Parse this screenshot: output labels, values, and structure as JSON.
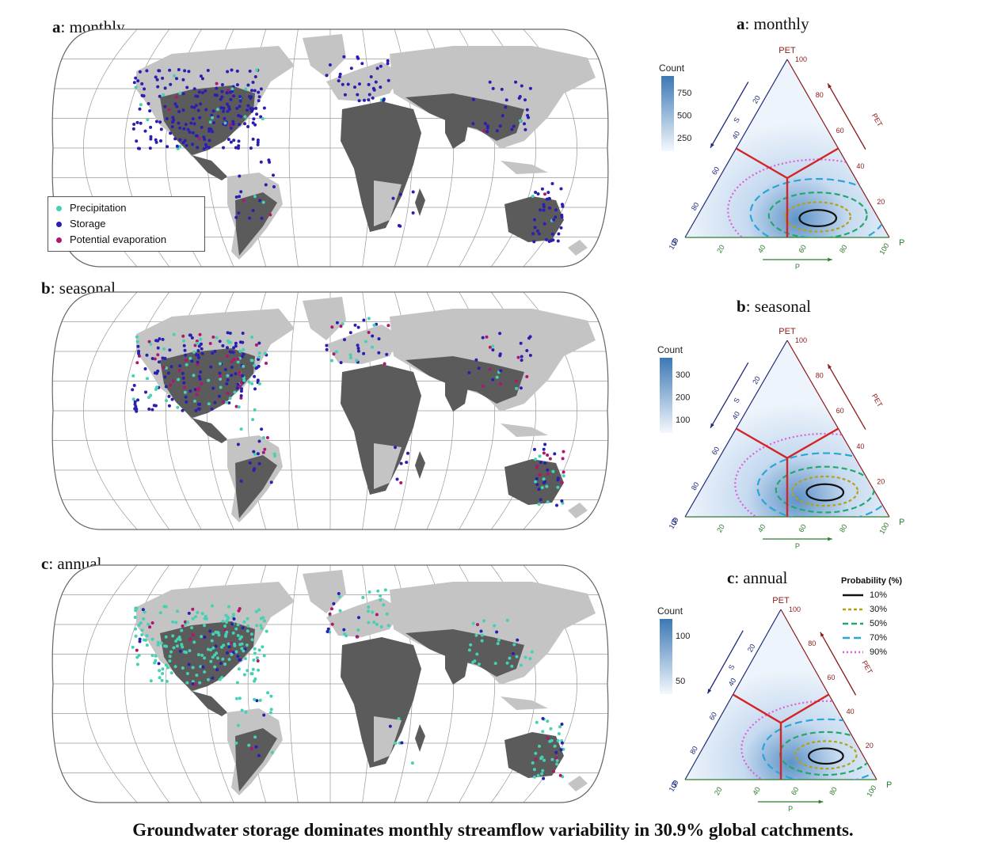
{
  "panels": [
    {
      "letter": "a",
      "label": ": monthly"
    },
    {
      "letter": "b",
      "label": ": seasonal"
    },
    {
      "letter": "c",
      "label": ": annual"
    }
  ],
  "map_legend": {
    "items": [
      {
        "label": "Precipitation",
        "color": "#45d1b3"
      },
      {
        "label": "Storage",
        "color": "#2b1fb0"
      },
      {
        "label": "Potential evaporation",
        "color": "#b0166e"
      }
    ]
  },
  "colors": {
    "land_dark": "#5b5b5b",
    "land_light": "#c4c4c4",
    "precipitation": "#45d1b3",
    "storage": "#2b1fb0",
    "pet": "#b0166e",
    "axis_s": "#1f2a7a",
    "axis_pet": "#8b1a1a",
    "axis_p": "#2e7d2e",
    "red_lines": "#d42424",
    "contour_10": "#111111",
    "contour_30": "#b4a214",
    "contour_50": "#23a86c",
    "contour_70": "#2aa6d6",
    "contour_90": "#e05fd4"
  },
  "ternary": {
    "vertex_pet": "PET",
    "vertex_s": "S",
    "vertex_p": "P",
    "axis_pet": "PET",
    "axis_s": "S",
    "axis_p": "P",
    "ticks_pet": [
      "100",
      "80",
      "60",
      "40",
      "20"
    ],
    "ticks_s": [
      "20",
      "40",
      "60",
      "80",
      "100"
    ],
    "ticks_p": [
      "20",
      "40",
      "60",
      "80",
      "100"
    ],
    "count_title": "Count",
    "count_ticks": [
      [
        "750",
        "500",
        "250"
      ],
      [
        "300",
        "200",
        "100"
      ],
      [
        "100",
        "50"
      ]
    ]
  },
  "probability_legend": {
    "title": "Probability (%)",
    "items": [
      "10%",
      "30%",
      "50%",
      "70%",
      "90%"
    ]
  },
  "caption": "Groundwater storage dominates monthly streamflow variability in 30.9% global catchments."
}
